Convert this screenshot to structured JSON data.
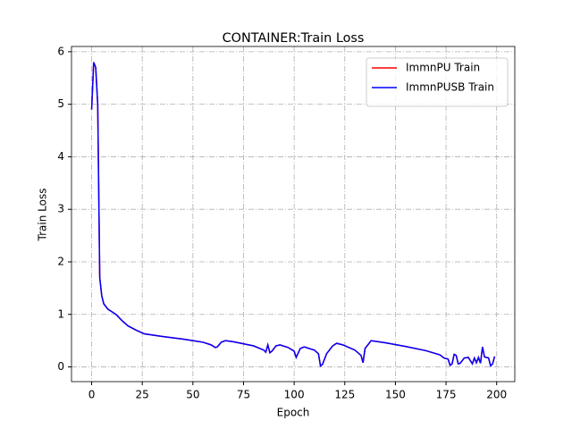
{
  "chart_data": {
    "type": "line",
    "title": "CONTAINER:Train Loss",
    "x_label": "Epoch",
    "y_label": "Train Loss",
    "x": [
      0,
      1,
      2,
      3,
      4,
      5,
      6,
      8,
      12,
      15,
      18,
      22,
      26,
      35,
      45,
      55,
      59,
      61,
      62,
      64,
      66,
      70,
      80,
      85,
      86,
      87,
      88,
      89,
      91,
      93,
      97,
      100,
      101,
      103,
      105,
      110,
      112,
      113,
      114,
      116,
      119,
      121,
      124,
      130,
      133,
      134,
      135,
      138,
      145,
      155,
      165,
      172,
      174,
      176,
      177,
      178,
      179,
      180,
      181,
      182,
      184,
      186,
      187,
      188,
      189,
      190,
      191,
      192,
      193,
      194,
      196,
      197,
      198,
      199
    ],
    "series": [
      {
        "name": "ImmnPU Train",
        "color": "#ff0000",
        "values": [
          4.9,
          5.8,
          5.7,
          5.0,
          1.7,
          1.35,
          1.2,
          1.1,
          1.0,
          0.88,
          0.78,
          0.7,
          0.63,
          0.58,
          0.53,
          0.47,
          0.42,
          0.37,
          0.38,
          0.47,
          0.5,
          0.48,
          0.4,
          0.32,
          0.28,
          0.42,
          0.27,
          0.3,
          0.4,
          0.42,
          0.37,
          0.3,
          0.18,
          0.35,
          0.38,
          0.32,
          0.25,
          0.02,
          0.05,
          0.25,
          0.4,
          0.45,
          0.42,
          0.32,
          0.22,
          0.08,
          0.35,
          0.5,
          0.46,
          0.39,
          0.31,
          0.23,
          0.17,
          0.15,
          0.03,
          0.06,
          0.24,
          0.22,
          0.06,
          0.07,
          0.17,
          0.18,
          0.12,
          0.06,
          0.17,
          0.08,
          0.18,
          0.07,
          0.38,
          0.19,
          0.17,
          0.02,
          0.06,
          0.2
        ]
      },
      {
        "name": "ImmnPUSB Train",
        "color": "#0000ff",
        "values": [
          4.9,
          5.8,
          5.7,
          5.0,
          1.7,
          1.35,
          1.2,
          1.1,
          1.0,
          0.88,
          0.78,
          0.7,
          0.63,
          0.58,
          0.53,
          0.47,
          0.42,
          0.37,
          0.38,
          0.47,
          0.5,
          0.48,
          0.4,
          0.32,
          0.28,
          0.42,
          0.27,
          0.3,
          0.4,
          0.42,
          0.37,
          0.3,
          0.18,
          0.35,
          0.38,
          0.32,
          0.25,
          0.02,
          0.05,
          0.25,
          0.4,
          0.45,
          0.42,
          0.32,
          0.22,
          0.08,
          0.35,
          0.5,
          0.46,
          0.39,
          0.31,
          0.23,
          0.17,
          0.15,
          0.03,
          0.06,
          0.24,
          0.22,
          0.06,
          0.07,
          0.17,
          0.18,
          0.12,
          0.06,
          0.17,
          0.08,
          0.18,
          0.07,
          0.38,
          0.19,
          0.17,
          0.02,
          0.06,
          0.2
        ]
      }
    ],
    "xlim": [
      -9.95,
      208.95
    ],
    "xticks": [
      0,
      25,
      50,
      75,
      100,
      125,
      150,
      175,
      200
    ],
    "ylim": [
      -0.28,
      6.1
    ],
    "yticks": [
      0,
      1,
      2,
      3,
      4,
      5,
      6
    ],
    "grid": true,
    "legend": "upper right"
  }
}
